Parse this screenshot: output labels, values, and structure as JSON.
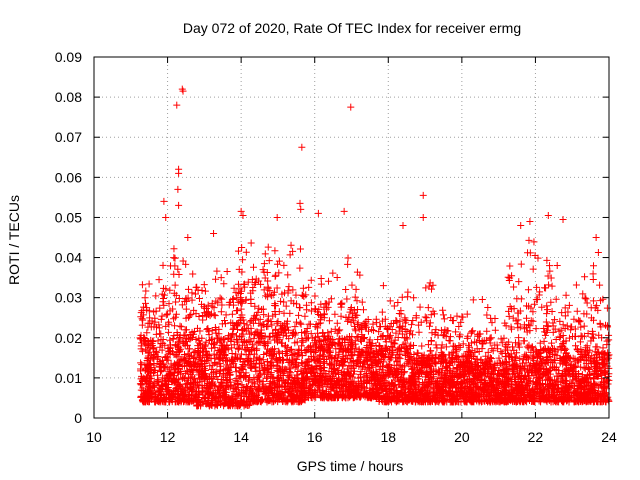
{
  "chart_data": {
    "type": "scatter",
    "title": "Day 072 of 2020, Rate Of TEC Index for receiver ermg",
    "xlabel": "GPS time / hours",
    "ylabel": "ROTI / TECUs",
    "xlim": [
      10,
      24
    ],
    "ylim": [
      0,
      0.09
    ],
    "x_ticks": [
      10,
      12,
      14,
      16,
      18,
      20,
      22,
      24
    ],
    "x_tick_labels": [
      "10",
      "12",
      "14",
      "16",
      "18",
      "20",
      "22",
      "24"
    ],
    "y_ticks": [
      0,
      0.01,
      0.02,
      0.03,
      0.04,
      0.05,
      0.06,
      0.07,
      0.08,
      0.09
    ],
    "y_tick_labels": [
      "0",
      "0.01",
      "0.02",
      "0.03",
      "0.04",
      "0.05",
      "0.06",
      "0.07",
      "0.08",
      "0.09"
    ],
    "grid": true,
    "marker": "plus",
    "series": [
      {
        "name": "ROTI",
        "color": "#ff0000",
        "density_profile": {
          "x_start": 11.25,
          "x_end": 24,
          "bins": [
            {
              "x": [
                11.25,
                11.75
              ],
              "base": [
                0.004,
                0.02
              ],
              "upper": 0.034
            },
            {
              "x": [
                11.75,
                12.25
              ],
              "base": [
                0.004,
                0.02
              ],
              "upper": 0.045
            },
            {
              "x": [
                12.25,
                12.75
              ],
              "base": [
                0.004,
                0.022
              ],
              "upper": 0.04
            },
            {
              "x": [
                12.75,
                13.25
              ],
              "base": [
                0.003,
                0.02
              ],
              "upper": 0.034
            },
            {
              "x": [
                13.25,
                13.75
              ],
              "base": [
                0.003,
                0.02
              ],
              "upper": 0.038
            },
            {
              "x": [
                13.75,
                14.25
              ],
              "base": [
                0.003,
                0.024
              ],
              "upper": 0.045
            },
            {
              "x": [
                14.25,
                14.75
              ],
              "base": [
                0.004,
                0.026
              ],
              "upper": 0.044
            },
            {
              "x": [
                14.75,
                15.25
              ],
              "base": [
                0.004,
                0.024
              ],
              "upper": 0.042
            },
            {
              "x": [
                15.25,
                15.75
              ],
              "base": [
                0.004,
                0.022
              ],
              "upper": 0.044
            },
            {
              "x": [
                15.75,
                16.25
              ],
              "base": [
                0.005,
                0.02
              ],
              "upper": 0.035
            },
            {
              "x": [
                16.25,
                16.75
              ],
              "base": [
                0.005,
                0.02
              ],
              "upper": 0.038
            },
            {
              "x": [
                16.75,
                17.25
              ],
              "base": [
                0.005,
                0.02
              ],
              "upper": 0.04
            },
            {
              "x": [
                17.25,
                17.75
              ],
              "base": [
                0.005,
                0.018
              ],
              "upper": 0.03
            },
            {
              "x": [
                17.75,
                18.25
              ],
              "base": [
                0.004,
                0.018
              ],
              "upper": 0.034
            },
            {
              "x": [
                18.25,
                18.75
              ],
              "base": [
                0.004,
                0.018
              ],
              "upper": 0.032
            },
            {
              "x": [
                18.75,
                19.25
              ],
              "base": [
                0.004,
                0.016
              ],
              "upper": 0.04
            },
            {
              "x": [
                19.25,
                19.75
              ],
              "base": [
                0.004,
                0.016
              ],
              "upper": 0.028
            },
            {
              "x": [
                19.75,
                20.25
              ],
              "base": [
                0.004,
                0.016
              ],
              "upper": 0.026
            },
            {
              "x": [
                20.25,
                20.75
              ],
              "base": [
                0.004,
                0.014
              ],
              "upper": 0.03
            },
            {
              "x": [
                20.75,
                21.25
              ],
              "base": [
                0.004,
                0.014
              ],
              "upper": 0.026
            },
            {
              "x": [
                21.25,
                21.75
              ],
              "base": [
                0.004,
                0.016
              ],
              "upper": 0.04
            },
            {
              "x": [
                21.75,
                22.25
              ],
              "base": [
                0.004,
                0.018
              ],
              "upper": 0.046
            },
            {
              "x": [
                22.25,
                22.75
              ],
              "base": [
                0.004,
                0.018
              ],
              "upper": 0.04
            },
            {
              "x": [
                22.75,
                23.25
              ],
              "base": [
                0.004,
                0.016
              ],
              "upper": 0.034
            },
            {
              "x": [
                23.25,
                23.75
              ],
              "base": [
                0.004,
                0.018
              ],
              "upper": 0.042
            },
            {
              "x": [
                23.75,
                24.0
              ],
              "base": [
                0.004,
                0.018
              ],
              "upper": 0.03
            }
          ]
        },
        "outliers": [
          {
            "x": 12.4,
            "y": 0.082
          },
          {
            "x": 12.42,
            "y": 0.0815
          },
          {
            "x": 12.25,
            "y": 0.078
          },
          {
            "x": 12.3,
            "y": 0.062
          },
          {
            "x": 12.3,
            "y": 0.061
          },
          {
            "x": 12.28,
            "y": 0.057
          },
          {
            "x": 12.3,
            "y": 0.053
          },
          {
            "x": 11.9,
            "y": 0.054
          },
          {
            "x": 11.95,
            "y": 0.05
          },
          {
            "x": 15.65,
            "y": 0.0675
          },
          {
            "x": 15.6,
            "y": 0.0535
          },
          {
            "x": 15.62,
            "y": 0.052
          },
          {
            "x": 16.1,
            "y": 0.051
          },
          {
            "x": 16.98,
            "y": 0.0775
          },
          {
            "x": 16.8,
            "y": 0.0515
          },
          {
            "x": 18.4,
            "y": 0.048
          },
          {
            "x": 18.95,
            "y": 0.0555
          },
          {
            "x": 18.95,
            "y": 0.05
          },
          {
            "x": 14.0,
            "y": 0.0515
          },
          {
            "x": 14.05,
            "y": 0.0505
          },
          {
            "x": 14.98,
            "y": 0.05
          },
          {
            "x": 21.85,
            "y": 0.049
          },
          {
            "x": 21.6,
            "y": 0.048
          },
          {
            "x": 22.35,
            "y": 0.0505
          },
          {
            "x": 22.75,
            "y": 0.0495
          },
          {
            "x": 13.25,
            "y": 0.046
          },
          {
            "x": 23.65,
            "y": 0.045
          },
          {
            "x": 12.55,
            "y": 0.045
          }
        ]
      }
    ]
  }
}
